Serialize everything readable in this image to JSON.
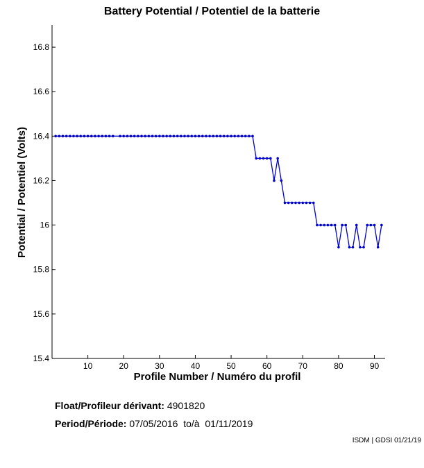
{
  "chart_data": {
    "type": "line",
    "title": "Battery Potential / Potentiel de la batterie",
    "xlabel": "Profile Number / Numéro du profil",
    "ylabel": "Potential / Potentiel (Volts)",
    "xlim": [
      0,
      93
    ],
    "ylim": [
      15.4,
      16.9
    ],
    "xticks": [
      10,
      20,
      30,
      40,
      50,
      60,
      70,
      80,
      90
    ],
    "yticks": [
      15.4,
      15.6,
      15.8,
      16,
      16.2,
      16.4,
      16.6,
      16.8
    ],
    "ytick_labels": [
      "15.4",
      "15.6",
      "15.8",
      "16",
      "16.2",
      "16.4",
      "16.6",
      "16.8"
    ],
    "grid": false,
    "color": "#0000cc",
    "series": [
      {
        "x": [
          1,
          2,
          3,
          4,
          5,
          6,
          7,
          8,
          9,
          10,
          11,
          12,
          13,
          14,
          15,
          16,
          17,
          19,
          20,
          21,
          22,
          23,
          24,
          25,
          26,
          27,
          28,
          29,
          30,
          31,
          32,
          33,
          34,
          35,
          36,
          37,
          38,
          39,
          40,
          41,
          42,
          43,
          44,
          45,
          46,
          47,
          48,
          49,
          50,
          51,
          52,
          53,
          54,
          55,
          56,
          57,
          58,
          59,
          60,
          61,
          62,
          63,
          64,
          65,
          66,
          67,
          68,
          69,
          70,
          71,
          72,
          73,
          74,
          75,
          76,
          77,
          78,
          79,
          80,
          81,
          82,
          83,
          84,
          85,
          86,
          87,
          88,
          89,
          90,
          91,
          92
        ],
        "y": [
          16.4,
          16.4,
          16.4,
          16.4,
          16.4,
          16.4,
          16.4,
          16.4,
          16.4,
          16.4,
          16.4,
          16.4,
          16.4,
          16.4,
          16.4,
          16.4,
          16.4,
          16.4,
          16.4,
          16.4,
          16.4,
          16.4,
          16.4,
          16.4,
          16.4,
          16.4,
          16.4,
          16.4,
          16.4,
          16.4,
          16.4,
          16.4,
          16.4,
          16.4,
          16.4,
          16.4,
          16.4,
          16.4,
          16.4,
          16.4,
          16.4,
          16.4,
          16.4,
          16.4,
          16.4,
          16.4,
          16.4,
          16.4,
          16.4,
          16.4,
          16.4,
          16.4,
          16.4,
          16.4,
          16.4,
          16.3,
          16.3,
          16.3,
          16.3,
          16.3,
          16.2,
          16.3,
          16.2,
          16.1,
          16.1,
          16.1,
          16.1,
          16.1,
          16.1,
          16.1,
          16.1,
          16.1,
          16.0,
          16.0,
          16.0,
          16.0,
          16.0,
          16.0,
          15.9,
          16.0,
          16.0,
          15.9,
          15.9,
          16.0,
          15.9,
          15.9,
          16.0,
          16.0,
          16.0,
          15.9,
          16.0
        ]
      }
    ]
  },
  "info": {
    "float_label": "Float/Profileur dérivant:",
    "float_value": "4901820",
    "period_label": "Period/Période:",
    "period_value": "07/05/2016  to/à  01/11/2019"
  },
  "footer": "ISDM | GDSI 01/21/19"
}
